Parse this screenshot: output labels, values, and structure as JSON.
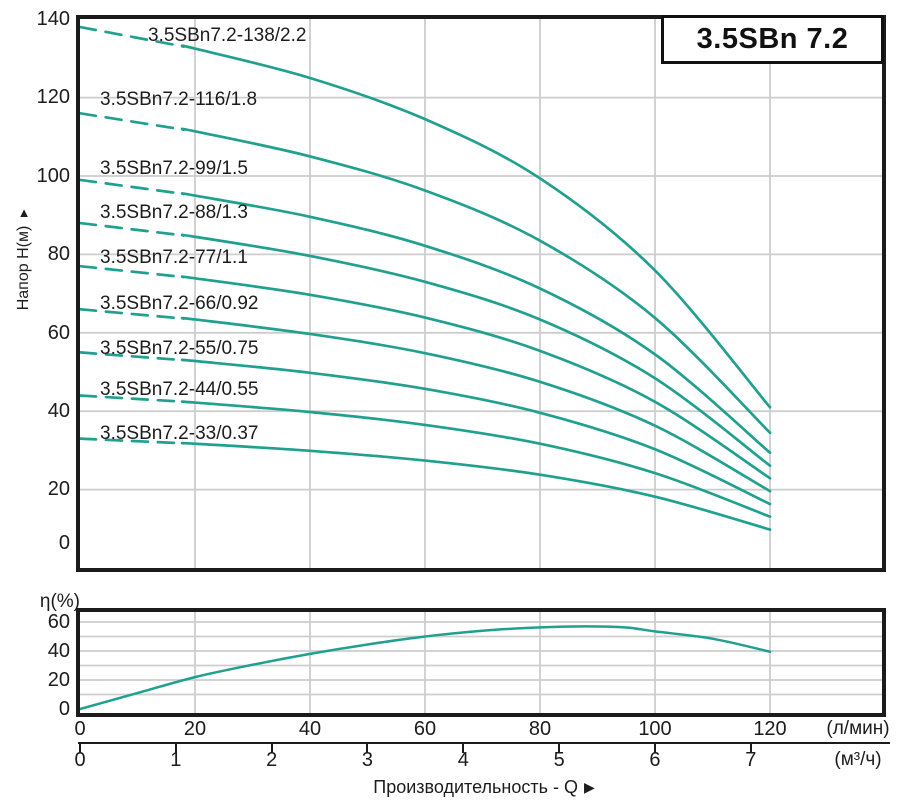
{
  "model_box": {
    "label": "3.5SBn 7.2"
  },
  "head_chart": {
    "y_axis_label": "Напор Н(м)",
    "y_axis_arrow": "▲"
  },
  "efficiency_chart": {
    "y_axis_label": "η(%)"
  },
  "x_axis": {
    "unit_lmin": "(л/мин)",
    "unit_m3h": "(м³/ч)",
    "title": "Производительность - Q",
    "title_arrow": "▶"
  },
  "colors": {
    "curve": "#21a08f",
    "grid": "#cdcdcd",
    "axis": "#1b1b1b",
    "text": "#1c1c1c"
  },
  "chart_data": [
    {
      "type": "line",
      "title": "3.5SBn 7.2 pump head-flow curves",
      "xlabel": "Производительность - Q",
      "ylabel": "Напор Н(м)",
      "x_units": [
        "л/мин",
        "м³/ч"
      ],
      "xlim_lmin": [
        0,
        139
      ],
      "ylim_m": [
        0,
        141
      ],
      "grid": true,
      "y_ticks": [
        140,
        120,
        100,
        80,
        60,
        40,
        20,
        0
      ],
      "x_ticks_lmin": [
        0,
        20,
        40,
        60,
        80,
        100,
        120
      ],
      "x_ticks_m3h": [
        0,
        1,
        2,
        3,
        4,
        5,
        6,
        7
      ],
      "dashed_below_q_lmin": 18,
      "x_lmin": [
        0,
        20,
        40,
        60,
        80,
        100,
        120
      ],
      "series": [
        {
          "name": "3.5SBn7.2-138/2.2",
          "head_m": [
            138,
            132.5,
            125.0,
            114.5,
            99.4,
            75.9,
            41.0
          ]
        },
        {
          "name": "3.5SBn7.2-116/1.8",
          "head_m": [
            116,
            111.4,
            105.0,
            96.3,
            83.5,
            63.8,
            34.5
          ]
        },
        {
          "name": "3.5SBn7.2-99/1.5",
          "head_m": [
            99,
            95.0,
            89.6,
            82.2,
            71.3,
            54.5,
            29.4
          ]
        },
        {
          "name": "3.5SBn7.2-88/1.3",
          "head_m": [
            88,
            84.5,
            79.6,
            73.0,
            63.4,
            48.4,
            26.1
          ]
        },
        {
          "name": "3.5SBn7.2-77/1.1",
          "head_m": [
            77,
            73.9,
            69.7,
            63.9,
            55.4,
            42.4,
            22.9
          ]
        },
        {
          "name": "3.5SBn7.2-66/0.92",
          "head_m": [
            66,
            63.4,
            59.7,
            54.8,
            47.5,
            36.3,
            19.6
          ]
        },
        {
          "name": "3.5SBn7.2-55/0.75",
          "head_m": [
            55,
            52.8,
            49.8,
            45.7,
            39.6,
            30.3,
            16.3
          ]
        },
        {
          "name": "3.5SBn7.2-44/0.55",
          "head_m": [
            44,
            42.2,
            39.8,
            36.5,
            31.7,
            24.2,
            13.1
          ]
        },
        {
          "name": "3.5SBn7.2-33/0.37",
          "head_m": [
            33,
            31.7,
            29.9,
            27.4,
            23.8,
            18.2,
            9.8
          ]
        }
      ]
    },
    {
      "type": "line",
      "title": "Efficiency curve",
      "ylabel": "η(%)",
      "ylim_pct": [
        0,
        68
      ],
      "grid": true,
      "y_ticks": [
        60,
        40,
        20,
        0
      ],
      "points": {
        "q_lmin": [
          0,
          10,
          20,
          30,
          40,
          50,
          60,
          70,
          80,
          88,
          95,
          100,
          110,
          120
        ],
        "eta_pct": [
          0,
          11,
          22,
          30.5,
          38,
          44.5,
          50,
          54,
          56.3,
          57,
          56.2,
          53.5,
          48.5,
          39.5
        ]
      }
    }
  ]
}
